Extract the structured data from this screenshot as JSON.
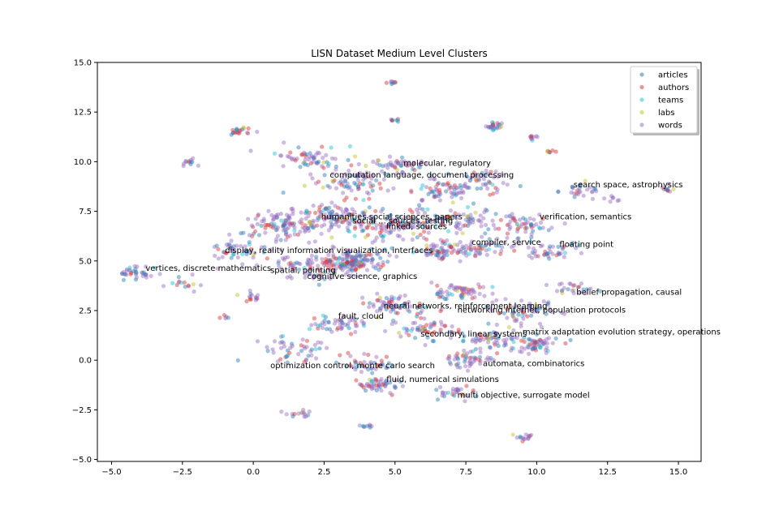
{
  "chart_data": {
    "type": "scatter",
    "title": "LISN Dataset Medium Level Clusters",
    "xlabel": "",
    "ylabel": "",
    "xlim": [
      -5.5,
      15.8
    ],
    "ylim": [
      -5.1,
      15.0
    ],
    "xticks": [
      -5.0,
      -2.5,
      0.0,
      2.5,
      5.0,
      7.5,
      10.0,
      12.5,
      15.0
    ],
    "xtick_labels": [
      "−5.0",
      "−2.5",
      "0.0",
      "2.5",
      "5.0",
      "7.5",
      "10.0",
      "12.5",
      "15.0"
    ],
    "yticks": [
      -5.0,
      -2.5,
      0.0,
      2.5,
      5.0,
      7.5,
      10.0,
      12.5,
      15.0
    ],
    "ytick_labels": [
      "−5.0",
      "−2.5",
      "0.0",
      "2.5",
      "5.0",
      "7.5",
      "10.0",
      "12.5",
      "15.0"
    ],
    "grid": false,
    "legend_position": "top-right",
    "series": [
      {
        "name": "articles",
        "color": "#1f77b4"
      },
      {
        "name": "authors",
        "color": "#d62728"
      },
      {
        "name": "teams",
        "color": "#17becf"
      },
      {
        "name": "labs",
        "color": "#bcbd22"
      },
      {
        "name": "words",
        "color": "#9467bd"
      }
    ],
    "clusters": [
      {
        "x": 4.9,
        "y": 14.0,
        "s": 0.08,
        "n": 10
      },
      {
        "x": 5.0,
        "y": 12.1,
        "s": 0.08,
        "n": 8
      },
      {
        "x": 8.5,
        "y": 11.8,
        "s": 0.15,
        "n": 25
      },
      {
        "x": 9.8,
        "y": 11.2,
        "s": 0.1,
        "n": 10
      },
      {
        "x": 10.5,
        "y": 10.5,
        "s": 0.06,
        "n": 6
      },
      {
        "x": -0.5,
        "y": 11.5,
        "s": 0.2,
        "n": 20
      },
      {
        "x": -2.3,
        "y": 10.0,
        "s": 0.15,
        "n": 12
      },
      {
        "x": 2.0,
        "y": 10.2,
        "s": 0.5,
        "n": 60
      },
      {
        "x": 3.5,
        "y": 9.0,
        "s": 0.6,
        "n": 80
      },
      {
        "x": 5.0,
        "y": 9.8,
        "s": 0.4,
        "n": 50
      },
      {
        "x": 6.5,
        "y": 8.5,
        "s": 0.5,
        "n": 60
      },
      {
        "x": 8.0,
        "y": 9.0,
        "s": 0.5,
        "n": 50
      },
      {
        "x": 11.5,
        "y": 8.6,
        "s": 0.3,
        "n": 25
      },
      {
        "x": 12.7,
        "y": 8.2,
        "s": 0.15,
        "n": 8
      },
      {
        "x": 14.6,
        "y": 8.6,
        "s": 0.15,
        "n": 10
      },
      {
        "x": 1.0,
        "y": 6.8,
        "s": 0.7,
        "n": 120
      },
      {
        "x": 3.0,
        "y": 7.2,
        "s": 0.6,
        "n": 110
      },
      {
        "x": 5.0,
        "y": 6.8,
        "s": 0.6,
        "n": 90
      },
      {
        "x": 7.0,
        "y": 7.0,
        "s": 0.6,
        "n": 80
      },
      {
        "x": 9.5,
        "y": 6.8,
        "s": 0.5,
        "n": 60
      },
      {
        "x": -0.5,
        "y": 5.5,
        "s": 0.5,
        "n": 50
      },
      {
        "x": 3.5,
        "y": 5.0,
        "s": 0.5,
        "n": 160
      },
      {
        "x": 2.0,
        "y": 4.6,
        "s": 0.5,
        "n": 60
      },
      {
        "x": 6.5,
        "y": 5.5,
        "s": 0.4,
        "n": 60
      },
      {
        "x": 8.0,
        "y": 5.6,
        "s": 0.5,
        "n": 60
      },
      {
        "x": 10.5,
        "y": 5.5,
        "s": 0.4,
        "n": 40
      },
      {
        "x": -4.0,
        "y": 4.4,
        "s": 0.3,
        "n": 35
      },
      {
        "x": -2.5,
        "y": 3.8,
        "s": 0.3,
        "n": 15
      },
      {
        "x": 0.0,
        "y": 3.2,
        "s": 0.2,
        "n": 15
      },
      {
        "x": 11.3,
        "y": 3.6,
        "s": 0.3,
        "n": 25
      },
      {
        "x": 7.3,
        "y": 3.4,
        "s": 0.4,
        "n": 60
      },
      {
        "x": 5.0,
        "y": 2.8,
        "s": 0.5,
        "n": 70
      },
      {
        "x": 9.5,
        "y": 2.5,
        "s": 0.5,
        "n": 60
      },
      {
        "x": 3.0,
        "y": 1.8,
        "s": 0.4,
        "n": 50
      },
      {
        "x": 6.0,
        "y": 1.6,
        "s": 0.5,
        "n": 60
      },
      {
        "x": 8.5,
        "y": 1.0,
        "s": 0.5,
        "n": 60
      },
      {
        "x": 10.0,
        "y": 0.8,
        "s": 0.4,
        "n": 60
      },
      {
        "x": 1.5,
        "y": 0.5,
        "s": 0.5,
        "n": 50
      },
      {
        "x": 4.0,
        "y": -0.2,
        "s": 0.4,
        "n": 40
      },
      {
        "x": 7.5,
        "y": 0.0,
        "s": 0.4,
        "n": 50
      },
      {
        "x": 4.5,
        "y": -1.2,
        "s": 0.3,
        "n": 50
      },
      {
        "x": 7.0,
        "y": -1.6,
        "s": 0.3,
        "n": 30
      },
      {
        "x": 1.7,
        "y": -2.7,
        "s": 0.2,
        "n": 15
      },
      {
        "x": 4.0,
        "y": -3.3,
        "s": 0.1,
        "n": 10
      },
      {
        "x": 9.5,
        "y": -3.9,
        "s": 0.15,
        "n": 15
      },
      {
        "x": -1.0,
        "y": 2.2,
        "s": 0.1,
        "n": 5
      }
    ],
    "annotations": [
      {
        "text": "molecular, regulatory",
        "x": 5.3,
        "y": 9.8
      },
      {
        "text": "computation language, document processing",
        "x": 2.7,
        "y": 9.2
      },
      {
        "text": "search space, astrophysics",
        "x": 11.3,
        "y": 8.7
      },
      {
        "text": "humanities social sciences, papers",
        "x": 2.4,
        "y": 7.1
      },
      {
        "text": "social ... sources, testing",
        "x": 3.5,
        "y": 6.9
      },
      {
        "text": "linked, sources",
        "x": 4.7,
        "y": 6.6
      },
      {
        "text": "verification, semantics",
        "x": 10.1,
        "y": 7.1
      },
      {
        "text": "compiler, service",
        "x": 7.7,
        "y": 5.8
      },
      {
        "text": "floating point",
        "x": 10.8,
        "y": 5.7
      },
      {
        "text": "display, reality information visualization, interfaces",
        "x": -1.0,
        "y": 5.4
      },
      {
        "text": "vertices, discrete mathematics",
        "x": -3.8,
        "y": 4.5
      },
      {
        "text": "spatial, pointing",
        "x": 0.6,
        "y": 4.4
      },
      {
        "text": "cognitive science, graphics",
        "x": 1.9,
        "y": 4.1
      },
      {
        "text": "belief propagation, causal",
        "x": 11.4,
        "y": 3.3
      },
      {
        "text": "neural networks, reinforcement learning",
        "x": 4.6,
        "y": 2.6
      },
      {
        "text": "networking internet, population protocols",
        "x": 7.2,
        "y": 2.4
      },
      {
        "text": "fault, cloud",
        "x": 3.0,
        "y": 2.1
      },
      {
        "text": "secondary, linear systems",
        "x": 5.9,
        "y": 1.2
      },
      {
        "text": "matrix adaptation evolution strategy, operations",
        "x": 9.5,
        "y": 1.3
      },
      {
        "text": "automata, combinatorics",
        "x": 8.1,
        "y": -0.3
      },
      {
        "text": "optimization control, monte carlo search",
        "x": 0.6,
        "y": -0.4
      },
      {
        "text": "fluid, numerical simulations",
        "x": 4.7,
        "y": -1.1
      },
      {
        "text": "multi objective, surrogate model",
        "x": 7.2,
        "y": -1.9
      }
    ]
  }
}
